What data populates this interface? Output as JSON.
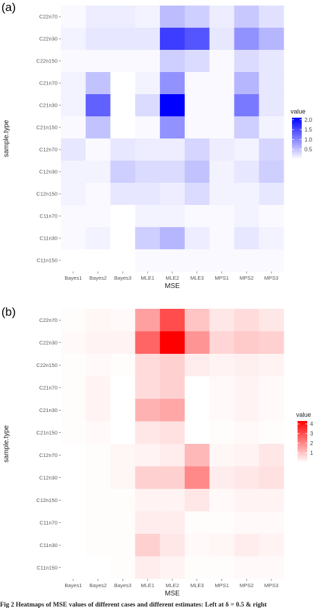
{
  "caption": "Fig 2  Heatmaps of MSE values of different cases and different estimates: Left at δ = 0.5 & right",
  "chart_data": [
    {
      "type": "heatmap",
      "panel_label": "(a)",
      "xlabel": "MSE",
      "ylabel": "sample.type",
      "x_categories": [
        "Bayes1",
        "Bayes2",
        "Bayes3",
        "MLE1",
        "MLE2",
        "MLE3",
        "MPS1",
        "MPS2",
        "MPS3"
      ],
      "y_categories": [
        "C22n70",
        "C22n30",
        "C22n150",
        "C21n70",
        "C21n30",
        "C21n150",
        "C12n70",
        "C12n30",
        "C12n150",
        "C11n70",
        "C11n30",
        "C11n150"
      ],
      "values": [
        [
          0.05,
          0.15,
          0.15,
          0.1,
          0.55,
          0.4,
          0.15,
          0.45,
          0.25
        ],
        [
          0.1,
          0.2,
          0.2,
          0.2,
          1.6,
          1.4,
          0.2,
          0.9,
          0.6
        ],
        [
          0.05,
          0.05,
          0.05,
          0.05,
          0.4,
          0.3,
          0.05,
          0.3,
          0.2
        ],
        [
          0.1,
          0.5,
          0.0,
          0.1,
          0.9,
          0.05,
          0.05,
          0.6,
          0.2
        ],
        [
          0.1,
          1.3,
          0.0,
          0.3,
          2.1,
          0.05,
          0.05,
          1.1,
          0.2
        ],
        [
          0.05,
          0.5,
          0.0,
          0.05,
          0.9,
          0.05,
          0.05,
          0.4,
          0.1
        ],
        [
          0.2,
          0.05,
          0.2,
          0.15,
          0.15,
          0.35,
          0.15,
          0.1,
          0.35
        ],
        [
          0.1,
          0.1,
          0.4,
          0.3,
          0.3,
          0.5,
          0.1,
          0.2,
          0.4
        ],
        [
          0.1,
          0.05,
          0.2,
          0.2,
          0.15,
          0.3,
          0.1,
          0.1,
          0.2
        ],
        [
          0.05,
          0.05,
          0.0,
          0.1,
          0.1,
          0.05,
          0.05,
          0.1,
          0.05
        ],
        [
          0.05,
          0.1,
          0.0,
          0.4,
          0.6,
          0.15,
          0.05,
          0.2,
          0.1
        ],
        [
          0.0,
          0.0,
          0.0,
          0.05,
          0.05,
          0.05,
          0.05,
          0.05,
          0.05
        ]
      ],
      "legend": {
        "title": "value",
        "ticks": [
          0.5,
          1.0,
          1.5,
          2.0
        ],
        "tick_labels": [
          "0.5",
          "1.0",
          "1.5",
          "2.0"
        ],
        "range": [
          0,
          2.1
        ]
      },
      "color_low": "#ffffff",
      "color_high": "#0000ff"
    },
    {
      "type": "heatmap",
      "panel_label": "(b)",
      "xlabel": "MSE",
      "ylabel": "sample.type",
      "x_categories": [
        "Bayes1",
        "Bayes2",
        "Bayes3",
        "MLE1",
        "MLE2",
        "MLE3",
        "MPS1",
        "MPS2",
        "MPS3"
      ],
      "y_categories": [
        "C22n70",
        "C22n30",
        "C22n150",
        "C21n70",
        "C21n30",
        "C21n150",
        "C12n70",
        "C12n30",
        "C12n150",
        "C11n70",
        "C11n30",
        "C11n150"
      ],
      "values": [
        [
          0.05,
          0.15,
          0.1,
          1.6,
          3.0,
          1.0,
          0.4,
          0.6,
          0.4
        ],
        [
          0.1,
          0.2,
          0.2,
          2.6,
          4.3,
          1.8,
          0.7,
          0.9,
          0.8
        ],
        [
          0.05,
          0.1,
          0.05,
          0.6,
          0.8,
          0.3,
          0.2,
          0.25,
          0.2
        ],
        [
          0.05,
          0.2,
          0.0,
          0.6,
          0.8,
          0.0,
          0.1,
          0.2,
          0.1
        ],
        [
          0.05,
          0.2,
          0.0,
          1.3,
          1.5,
          0.0,
          0.1,
          0.2,
          0.1
        ],
        [
          0.05,
          0.1,
          0.0,
          0.4,
          0.5,
          0.0,
          0.05,
          0.1,
          0.05
        ],
        [
          0.0,
          0.05,
          0.15,
          0.2,
          0.3,
          1.2,
          0.15,
          0.2,
          0.4
        ],
        [
          0.0,
          0.05,
          0.15,
          0.8,
          0.8,
          2.0,
          0.3,
          0.4,
          0.5
        ],
        [
          0.0,
          0.05,
          0.05,
          0.2,
          0.2,
          0.4,
          0.1,
          0.2,
          0.2
        ],
        [
          0.0,
          0.05,
          0.05,
          0.3,
          0.3,
          0.05,
          0.05,
          0.1,
          0.1
        ],
        [
          0.0,
          0.05,
          0.05,
          0.8,
          0.4,
          0.1,
          0.15,
          0.3,
          0.2
        ],
        [
          0.0,
          0.0,
          0.05,
          0.3,
          0.2,
          0.05,
          0.05,
          0.1,
          0.1
        ]
      ],
      "legend": {
        "title": "value",
        "ticks": [
          1,
          2,
          3,
          4
        ],
        "tick_labels": [
          "1",
          "2",
          "3",
          "4"
        ],
        "range": [
          0,
          4.3
        ]
      },
      "color_low": "#ffffff",
      "color_high": "#ff0000"
    }
  ]
}
